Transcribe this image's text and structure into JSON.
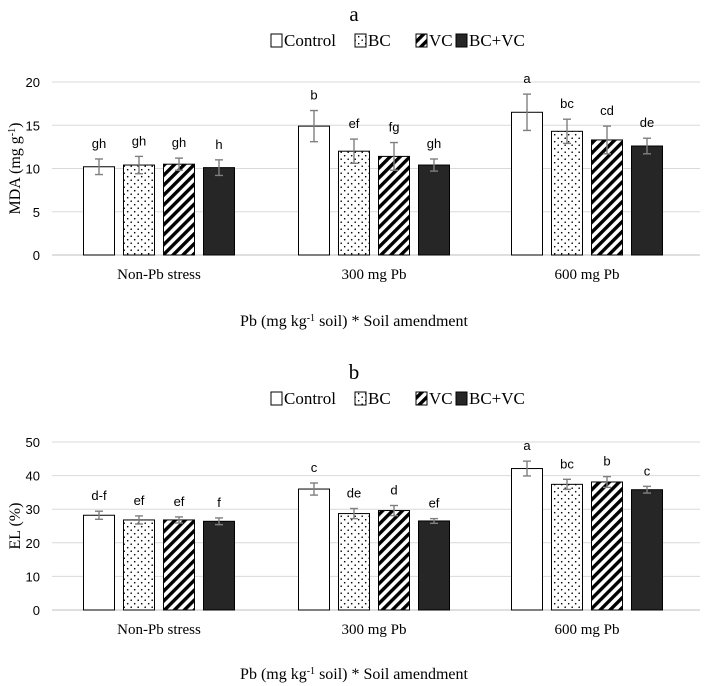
{
  "chart_data": [
    {
      "type": "bar",
      "panel_label": "a",
      "ylabel": "MDA (mg g⁻¹)",
      "xlabel": "Pb (mg kg⁻¹ soil) * Soil amendment",
      "categories": [
        "Non-Pb stress",
        "300 mg Pb",
        "600 mg Pb"
      ],
      "ylim": [
        0,
        20
      ],
      "yticks": [
        0,
        5,
        10,
        15,
        20
      ],
      "grid": "horizontal",
      "legend_position": "top",
      "series": [
        {
          "name": "Control",
          "values": [
            10.2,
            14.9,
            16.5
          ],
          "errors": [
            0.9,
            1.8,
            2.1
          ],
          "letters": [
            "gh",
            "b",
            "a"
          ],
          "fill": "white"
        },
        {
          "name": "BC",
          "values": [
            10.4,
            12.0,
            14.3
          ],
          "errors": [
            1.0,
            1.4,
            1.4
          ],
          "letters": [
            "gh",
            "ef",
            "bc"
          ],
          "fill": "dots"
        },
        {
          "name": "VC",
          "values": [
            10.5,
            11.4,
            13.3
          ],
          "errors": [
            0.7,
            1.6,
            1.6
          ],
          "letters": [
            "gh",
            "fg",
            "cd"
          ],
          "fill": "stripes"
        },
        {
          "name": "BC+VC",
          "values": [
            10.1,
            10.4,
            12.6
          ],
          "errors": [
            0.9,
            0.7,
            0.9
          ],
          "letters": [
            "h",
            "gh",
            "de"
          ],
          "fill": "black"
        }
      ]
    },
    {
      "type": "bar",
      "panel_label": "b",
      "ylabel": "EL (%)",
      "xlabel": "Pb (mg kg⁻¹ soil) * Soil amendment",
      "categories": [
        "Non-Pb stress",
        "300 mg Pb",
        "600 mg Pb"
      ],
      "ylim": [
        0,
        50
      ],
      "yticks": [
        0,
        10,
        20,
        30,
        40,
        50
      ],
      "grid": "horizontal",
      "legend_position": "top",
      "series": [
        {
          "name": "Control",
          "values": [
            28.2,
            36.0,
            42.1
          ],
          "errors": [
            1.2,
            1.8,
            2.2
          ],
          "letters": [
            "d-f",
            "c",
            "a"
          ],
          "fill": "white"
        },
        {
          "name": "BC",
          "values": [
            26.8,
            28.7,
            37.4
          ],
          "errors": [
            1.2,
            1.5,
            1.5
          ],
          "letters": [
            "ef",
            "de",
            "bc"
          ],
          "fill": "dots"
        },
        {
          "name": "VC",
          "values": [
            26.8,
            29.6,
            38.1
          ],
          "errors": [
            0.9,
            1.5,
            1.6
          ],
          "letters": [
            "ef",
            "d",
            "b"
          ],
          "fill": "stripes"
        },
        {
          "name": "BC+VC",
          "values": [
            26.4,
            26.5,
            35.8
          ],
          "errors": [
            1.0,
            0.7,
            1.0
          ],
          "letters": [
            "f",
            "ef",
            "c"
          ],
          "fill": "black"
        }
      ]
    }
  ]
}
